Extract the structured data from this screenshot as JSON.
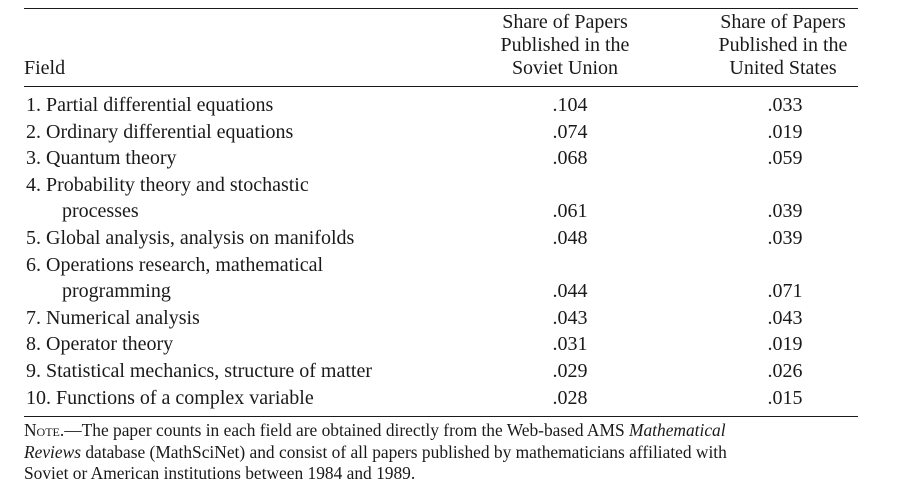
{
  "table": {
    "headers": {
      "field": "Field",
      "soviet": [
        "Share of Papers",
        "Published in the",
        "Soviet Union"
      ],
      "us": [
        "Share of Papers",
        "Published in the",
        "United States"
      ]
    },
    "rows": [
      {
        "label": [
          "1. Partial differential equations"
        ],
        "soviet": ".104",
        "us": ".033"
      },
      {
        "label": [
          "2. Ordinary differential equations"
        ],
        "soviet": ".074",
        "us": ".019"
      },
      {
        "label": [
          "3. Quantum theory"
        ],
        "soviet": ".068",
        "us": ".059"
      },
      {
        "label": [
          "4. Probability theory and stochastic",
          "processes"
        ],
        "soviet": ".061",
        "us": ".039"
      },
      {
        "label": [
          "5. Global analysis, analysis on manifolds"
        ],
        "soviet": ".048",
        "us": ".039"
      },
      {
        "label": [
          "6. Operations research, mathematical",
          "programming"
        ],
        "soviet": ".044",
        "us": ".071"
      },
      {
        "label": [
          "7. Numerical analysis"
        ],
        "soviet": ".043",
        "us": ".043"
      },
      {
        "label": [
          "8. Operator theory"
        ],
        "soviet": ".031",
        "us": ".019"
      },
      {
        "label": [
          "9. Statistical mechanics, structure of matter"
        ],
        "soviet": ".029",
        "us": ".026"
      },
      {
        "label": [
          "10. Functions of a complex variable"
        ],
        "soviet": ".028",
        "us": ".015"
      }
    ]
  },
  "note": {
    "prefix": "Note.",
    "line1_a": "—The paper counts in each field are obtained directly from the Web-based AMS ",
    "line1_em": "Mathematical",
    "line2_em": "Reviews",
    "line2_b": " database (MathSciNet) and consist of all papers published by mathematicians affiliated with",
    "line3": "Soviet or American institutions between 1984 and 1989."
  }
}
